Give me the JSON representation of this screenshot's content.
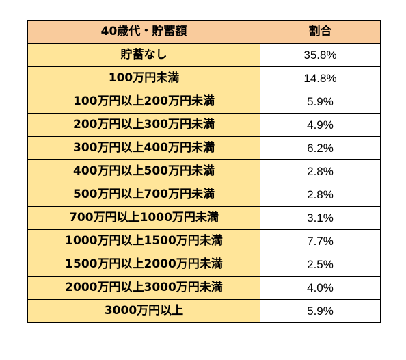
{
  "chart_data": {
    "type": "table",
    "columns": [
      "40歳代・貯蓄額",
      "割合"
    ],
    "rows": [
      {
        "category": "貯蓄なし",
        "value": "35.8%"
      },
      {
        "category": "100万円未満",
        "value": "14.8%"
      },
      {
        "category": "100万円以上200万円未満",
        "value": "5.9%"
      },
      {
        "category": "200万円以上300万円未満",
        "value": "4.9%"
      },
      {
        "category": "300万円以上400万円未満",
        "value": "6.2%"
      },
      {
        "category": "400万円以上500万円未満",
        "value": "2.8%"
      },
      {
        "category": "500万円以上700万円未満",
        "value": "2.8%"
      },
      {
        "category": "700万円以上1000万円未満",
        "value": "3.1%"
      },
      {
        "category": "1000万円以上1500万円未満",
        "value": "7.7%"
      },
      {
        "category": "1500万円以上2000万円未満",
        "value": "2.5%"
      },
      {
        "category": "2000万円以上3000万円未満",
        "value": "4.0%"
      },
      {
        "category": "3000万円以上",
        "value": "5.9%"
      }
    ],
    "colors": {
      "header_bg": "#f9cb9c",
      "label_bg": "#ffe599",
      "value_bg": "#ffffff",
      "border": "#000000"
    }
  }
}
